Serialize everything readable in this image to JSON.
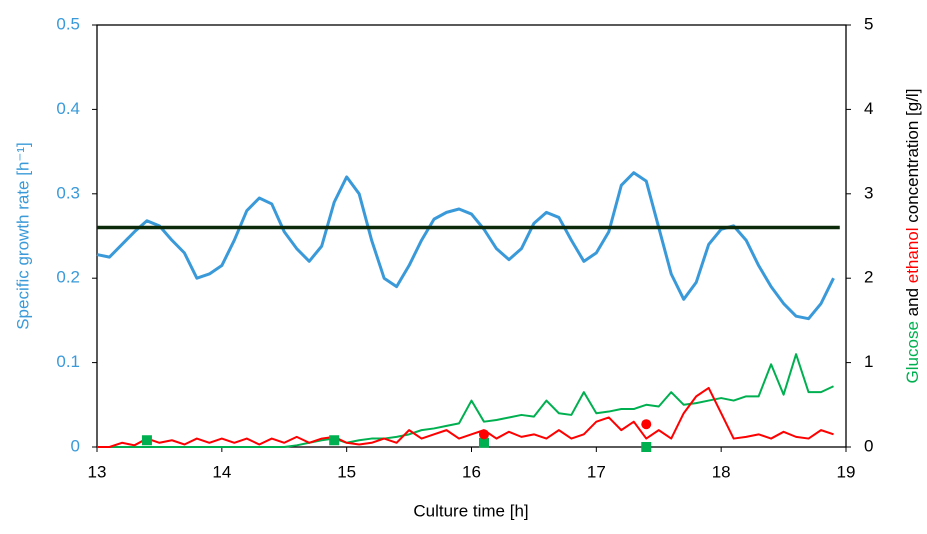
{
  "chart_data": {
    "type": "line",
    "xlabel": "Culture time [h]",
    "ylabel": "Specific growth rate [h⁻¹]",
    "ylabel_color": "#3a9ad9",
    "y2label_parts": [
      {
        "text": "Glucose",
        "color": "#00b050"
      },
      {
        "text": " and ",
        "color": "#000000"
      },
      {
        "text": "ethanol",
        "color": "#ff0000"
      },
      {
        "text": " concentration [g/l]",
        "color": "#000000"
      }
    ],
    "xlim": [
      13,
      19
    ],
    "xticks": [
      13,
      14,
      15,
      16,
      17,
      18,
      19
    ],
    "ylim": [
      0,
      0.5
    ],
    "yticks": [
      0,
      0.1,
      0.2,
      0.3,
      0.4,
      0.5
    ],
    "ytick_color": "#3a9ad9",
    "y2lim": [
      0,
      5
    ],
    "y2ticks": [
      0,
      1,
      2,
      3,
      4,
      5
    ],
    "series": [
      {
        "color": "#3a9ad9",
        "axis": "y",
        "width": 3,
        "marker": "none",
        "x": [
          13.0,
          13.1,
          13.2,
          13.3,
          13.4,
          13.5,
          13.6,
          13.7,
          13.8,
          13.9,
          14.0,
          14.1,
          14.2,
          14.3,
          14.4,
          14.5,
          14.6,
          14.7,
          14.8,
          14.9,
          15.0,
          15.1,
          15.2,
          15.3,
          15.4,
          15.5,
          15.6,
          15.7,
          15.8,
          15.9,
          16.0,
          16.1,
          16.2,
          16.3,
          16.4,
          16.5,
          16.6,
          16.7,
          16.8,
          16.9,
          17.0,
          17.1,
          17.2,
          17.3,
          17.4,
          17.5,
          17.6,
          17.7,
          17.8,
          17.9,
          18.0,
          18.1,
          18.2,
          18.3,
          18.4,
          18.5,
          18.6,
          18.7,
          18.8,
          18.9
        ],
        "values": [
          0.228,
          0.225,
          0.24,
          0.255,
          0.268,
          0.262,
          0.245,
          0.23,
          0.2,
          0.205,
          0.215,
          0.245,
          0.28,
          0.295,
          0.288,
          0.255,
          0.235,
          0.22,
          0.238,
          0.29,
          0.32,
          0.3,
          0.245,
          0.2,
          0.19,
          0.215,
          0.245,
          0.27,
          0.278,
          0.282,
          0.276,
          0.258,
          0.235,
          0.222,
          0.235,
          0.265,
          0.278,
          0.272,
          0.245,
          0.22,
          0.23,
          0.255,
          0.31,
          0.325,
          0.315,
          0.26,
          0.205,
          0.175,
          0.195,
          0.24,
          0.258,
          0.262,
          0.245,
          0.215,
          0.19,
          0.17,
          0.155,
          0.152,
          0.17,
          0.2
        ]
      },
      {
        "color": "#0a2a0a",
        "axis": "y",
        "width": 3.5,
        "marker": "none",
        "x": [
          13.0,
          18.95
        ],
        "values": [
          0.26,
          0.26
        ]
      },
      {
        "color": "#00b050",
        "axis": "y2",
        "width": 2,
        "marker": "none",
        "x": [
          13.0,
          13.1,
          13.2,
          13.3,
          13.4,
          13.5,
          13.6,
          13.7,
          13.8,
          13.9,
          14.0,
          14.1,
          14.2,
          14.3,
          14.4,
          14.5,
          14.6,
          14.7,
          14.8,
          14.9,
          15.0,
          15.1,
          15.2,
          15.3,
          15.4,
          15.5,
          15.6,
          15.7,
          15.8,
          15.9,
          16.0,
          16.1,
          16.2,
          16.3,
          16.4,
          16.5,
          16.6,
          16.7,
          16.8,
          16.9,
          17.0,
          17.1,
          17.2,
          17.3,
          17.4,
          17.5,
          17.6,
          17.7,
          17.8,
          17.9,
          18.0,
          18.1,
          18.2,
          18.3,
          18.4,
          18.5,
          18.6,
          18.7,
          18.8,
          18.9
        ],
        "values": [
          0,
          0,
          0,
          0,
          0,
          0,
          0,
          0,
          0,
          0,
          0,
          0,
          0,
          0,
          0,
          0,
          0.02,
          0.05,
          0.08,
          0.1,
          0.05,
          0.08,
          0.1,
          0.1,
          0.12,
          0.15,
          0.2,
          0.22,
          0.25,
          0.28,
          0.55,
          0.3,
          0.32,
          0.35,
          0.38,
          0.36,
          0.55,
          0.4,
          0.38,
          0.65,
          0.4,
          0.42,
          0.45,
          0.45,
          0.5,
          0.48,
          0.65,
          0.5,
          0.52,
          0.55,
          0.58,
          0.55,
          0.6,
          0.6,
          0.98,
          0.62,
          1.1,
          0.65,
          0.65,
          0.72
        ]
      },
      {
        "color": "#ff0000",
        "axis": "y2",
        "width": 2,
        "marker": "none",
        "x": [
          13.0,
          13.1,
          13.2,
          13.3,
          13.4,
          13.5,
          13.6,
          13.7,
          13.8,
          13.9,
          14.0,
          14.1,
          14.2,
          14.3,
          14.4,
          14.5,
          14.6,
          14.7,
          14.8,
          14.9,
          15.0,
          15.1,
          15.2,
          15.3,
          15.4,
          15.5,
          15.6,
          15.7,
          15.8,
          15.9,
          16.0,
          16.1,
          16.2,
          16.3,
          16.4,
          16.5,
          16.6,
          16.7,
          16.8,
          16.9,
          17.0,
          17.1,
          17.2,
          17.3,
          17.4,
          17.5,
          17.6,
          17.7,
          17.8,
          17.9,
          18.0,
          18.1,
          18.2,
          18.3,
          18.4,
          18.5,
          18.6,
          18.7,
          18.8,
          18.9
        ],
        "values": [
          0,
          0,
          0.05,
          0.02,
          0.1,
          0.05,
          0.08,
          0.03,
          0.1,
          0.05,
          0.1,
          0.05,
          0.1,
          0.03,
          0.1,
          0.05,
          0.12,
          0.05,
          0.1,
          0.12,
          0.05,
          0.03,
          0.05,
          0.1,
          0.05,
          0.2,
          0.1,
          0.15,
          0.2,
          0.1,
          0.15,
          0.2,
          0.1,
          0.18,
          0.12,
          0.15,
          0.1,
          0.2,
          0.1,
          0.15,
          0.3,
          0.35,
          0.2,
          0.3,
          0.1,
          0.2,
          0.1,
          0.4,
          0.6,
          0.7,
          0.4,
          0.1,
          0.12,
          0.15,
          0.1,
          0.18,
          0.12,
          0.1,
          0.2,
          0.15
        ]
      },
      {
        "color": "#00b050",
        "axis": "y2",
        "marker": "square",
        "x": [
          13.4,
          14.9,
          16.1,
          17.4
        ],
        "values": [
          0.08,
          0.08,
          0.05,
          0
        ]
      },
      {
        "color": "#ff0000",
        "axis": "y2",
        "marker": "circle",
        "x": [
          16.1,
          17.4
        ],
        "values": [
          0.15,
          0.27
        ]
      }
    ]
  }
}
